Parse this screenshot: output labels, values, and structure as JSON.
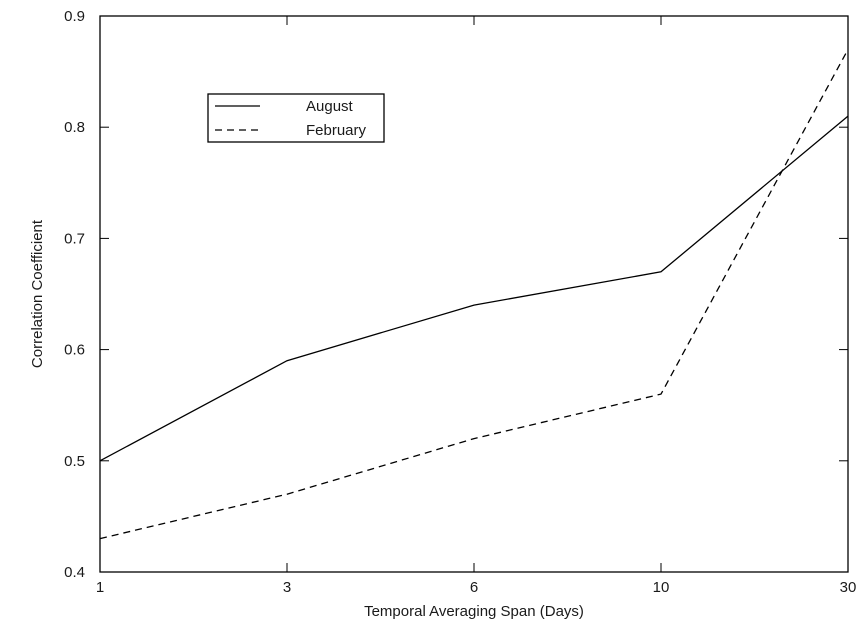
{
  "chart_data": {
    "type": "line",
    "title": "",
    "xlabel": "Temporal Averaging Span (Days)",
    "ylabel": "Correlation Coefficient",
    "x": [
      1,
      3,
      6,
      10,
      30
    ],
    "x_tick_labels": [
      "1",
      "3",
      "6",
      "10",
      "30"
    ],
    "x_scale": "categorical-evenly-spaced",
    "ylim": [
      0.4,
      0.9
    ],
    "y_ticks": [
      0.4,
      0.5,
      0.6,
      0.7,
      0.8,
      0.9
    ],
    "y_tick_labels": [
      "0.4",
      "0.5",
      "0.6",
      "0.7",
      "0.8",
      "0.9"
    ],
    "grid": false,
    "legend_position": "top-left",
    "series": [
      {
        "name": "August",
        "style": "solid",
        "color": "#000000",
        "values": [
          0.5,
          0.59,
          0.64,
          0.67,
          0.81
        ]
      },
      {
        "name": "February",
        "style": "dashed",
        "color": "#000000",
        "values": [
          0.43,
          0.47,
          0.52,
          0.56,
          0.87
        ]
      }
    ]
  }
}
